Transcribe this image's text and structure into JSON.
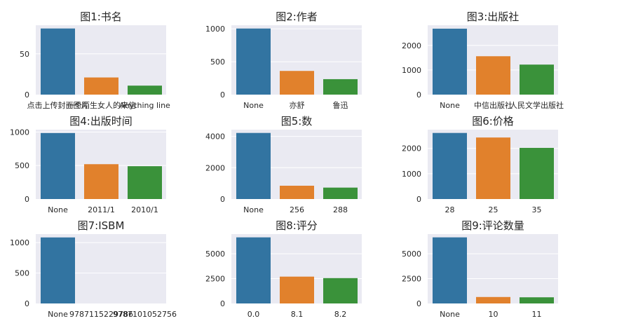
{
  "colors": {
    "series": [
      "#3274a1",
      "#e1812c",
      "#3a923a"
    ],
    "plot_background": "#eaeaf2",
    "grid": "#ffffff",
    "text": "#262626"
  },
  "chart_data": [
    {
      "type": "bar",
      "title": "图1:书名",
      "categories": [
        "点击上传封面图片",
        "一个陌生女人的来信",
        "Anything line"
      ],
      "values": [
        81,
        21,
        11
      ],
      "yticks": [
        0,
        50
      ],
      "ylim": [
        0,
        85
      ],
      "grid": true
    },
    {
      "type": "bar",
      "title": "图2:作者",
      "categories": [
        "None",
        "亦舒",
        "鲁迅"
      ],
      "values": [
        1005,
        360,
        235
      ],
      "yticks": [
        0,
        500,
        1000
      ],
      "ylim": [
        0,
        1055
      ],
      "grid": true
    },
    {
      "type": "bar",
      "title": "图3:出版社",
      "categories": [
        "None",
        "中信出版社",
        "人民文学出版社"
      ],
      "values": [
        2680,
        1560,
        1220
      ],
      "yticks": [
        0,
        1000,
        2000
      ],
      "ylim": [
        0,
        2820
      ],
      "grid": true
    },
    {
      "type": "bar",
      "title": "图4:出版时间",
      "categories": [
        "None",
        "2011/1",
        "2010/1"
      ],
      "values": [
        985,
        520,
        490
      ],
      "yticks": [
        0,
        500,
        1000
      ],
      "ylim": [
        0,
        1035
      ],
      "grid": true
    },
    {
      "type": "bar",
      "title": "图5:数",
      "categories": [
        "None",
        "256",
        "288"
      ],
      "values": [
        4220,
        850,
        730
      ],
      "yticks": [
        0,
        2000,
        4000
      ],
      "ylim": [
        0,
        4430
      ],
      "grid": true
    },
    {
      "type": "bar",
      "title": "图6:价格",
      "categories": [
        "28",
        "25",
        "35"
      ],
      "values": [
        2610,
        2430,
        2020
      ],
      "yticks": [
        0,
        1000,
        2000
      ],
      "ylim": [
        0,
        2740
      ],
      "grid": true
    },
    {
      "type": "bar",
      "title": "图7:ISBM",
      "categories": [
        "None",
        "9787115229786",
        "9787101052756"
      ],
      "values": [
        1085,
        0,
        0
      ],
      "yticks": [
        0,
        500,
        1000
      ],
      "ylim": [
        0,
        1140
      ],
      "grid": true
    },
    {
      "type": "bar",
      "title": "图8:评分",
      "categories": [
        "0.0",
        "8.1",
        "8.2"
      ],
      "values": [
        6650,
        2700,
        2550
      ],
      "yticks": [
        0,
        2500,
        5000
      ],
      "ylim": [
        0,
        6980
      ],
      "grid": true
    },
    {
      "type": "bar",
      "title": "图9:评论数量",
      "categories": [
        "None",
        "10",
        "11"
      ],
      "values": [
        6650,
        650,
        620
      ],
      "yticks": [
        0,
        2500,
        5000
      ],
      "ylim": [
        0,
        6980
      ],
      "grid": true
    }
  ]
}
